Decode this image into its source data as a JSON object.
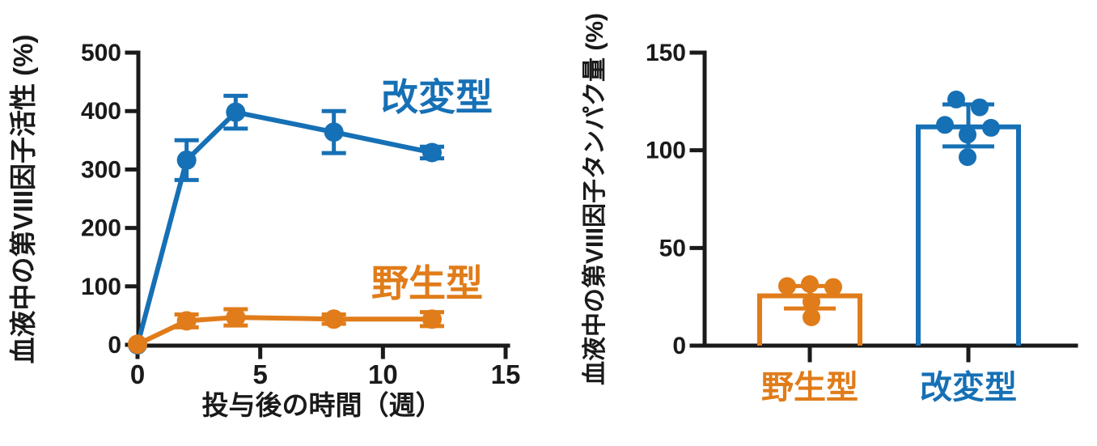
{
  "colors": {
    "blue": "#1670B5",
    "orange": "#E07C1A",
    "axis": "#1a1a1a",
    "background": "#ffffff"
  },
  "chart_data": [
    {
      "type": "line",
      "title": "",
      "ylabel": "血液中の第VIII因子活性 (%)",
      "xlabel": "投与後の時間（週）",
      "ylim": [
        0,
        500
      ],
      "xlim": [
        0,
        15
      ],
      "y_ticks": [
        0,
        100,
        200,
        300,
        400,
        500
      ],
      "x_ticks": [
        0,
        5,
        10,
        15
      ],
      "grid": false,
      "legend_position": "inline-right-of-lines",
      "series": [
        {
          "name": "改変型",
          "color": "blue",
          "x": [
            0,
            2,
            4,
            8,
            12
          ],
          "values": [
            0,
            316,
            398,
            364,
            329
          ],
          "errors": [
            0,
            34,
            28,
            36,
            10
          ]
        },
        {
          "name": "野生型",
          "color": "orange",
          "x": [
            0,
            2,
            4,
            8,
            12
          ],
          "values": [
            1,
            41,
            47,
            44,
            44
          ],
          "errors": [
            0,
            11,
            14,
            8,
            12
          ]
        }
      ]
    },
    {
      "type": "bar",
      "title": "",
      "ylabel": "血液中の第VIII因子タンパク量 (%)",
      "xlabel": "",
      "ylim": [
        0,
        150
      ],
      "y_ticks": [
        0,
        50,
        100,
        150
      ],
      "grid": false,
      "categories": [
        "野生型",
        "改変型"
      ],
      "bars": [
        {
          "name": "野生型",
          "color": "orange",
          "mean": 25.5,
          "err_low": 19,
          "err_high": 30.5,
          "points": [
            {
              "dx": -28,
              "v": 30.5
            },
            {
              "dx": 0,
              "v": 31.5
            },
            {
              "dx": 29,
              "v": 30
            },
            {
              "dx": 2,
              "v": 22.5
            },
            {
              "dx": 2,
              "v": 14.5
            }
          ]
        },
        {
          "name": "改変型",
          "color": "blue",
          "mean": 112,
          "err_low": 102,
          "err_high": 123.5,
          "points": [
            {
              "dx": -15,
              "v": 126
            },
            {
              "dx": 14,
              "v": 122
            },
            {
              "dx": -29,
              "v": 113
            },
            {
              "dx": 28,
              "v": 111.5
            },
            {
              "dx": -1,
              "v": 108
            },
            {
              "dx": -1,
              "v": 96.5
            }
          ]
        }
      ]
    }
  ]
}
